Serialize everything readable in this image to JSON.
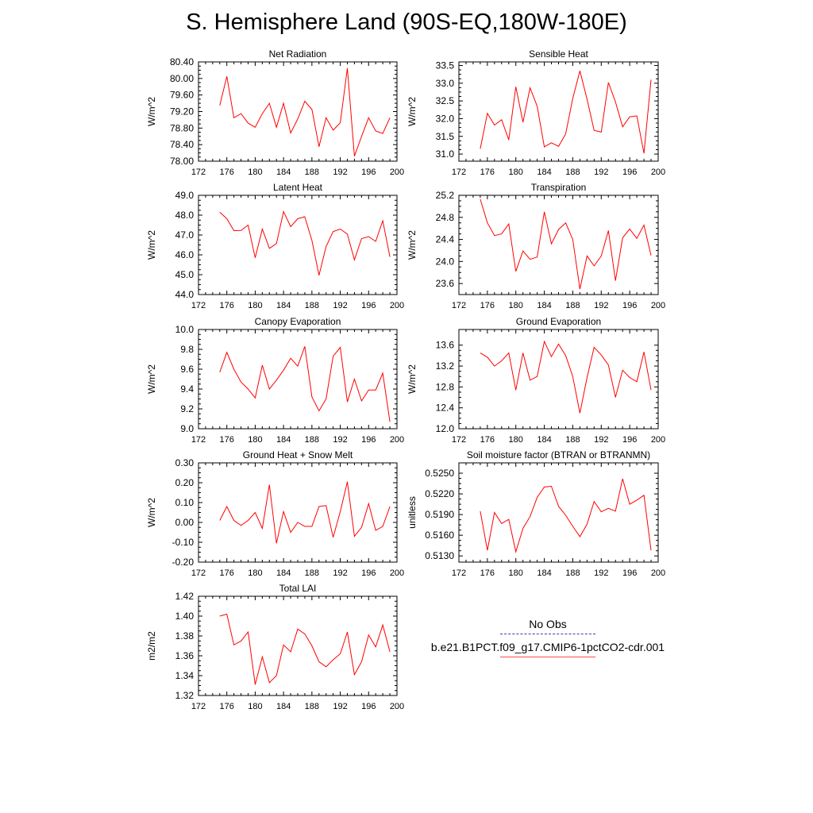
{
  "title": "S. Hemisphere Land (90S-EQ,180W-180E)",
  "legend": {
    "obs_label": "No Obs",
    "model_label": "b.e21.B1PCT.f09_g17.CMIP6-1pctCO2-cdr.001",
    "obs_color": "#3b3bbd",
    "model_color": "#ff0000"
  },
  "chart_data": [
    {
      "type": "line",
      "title": "Net Radiation",
      "ylabel": "W/m^2",
      "xlim": [
        172,
        200
      ],
      "xticks": [
        172,
        176,
        180,
        184,
        188,
        192,
        196,
        200
      ],
      "ylim": [
        78.0,
        80.4
      ],
      "yticks": [
        "78.00",
        "78.40",
        "78.80",
        "79.20",
        "79.60",
        "80.00",
        "80.40"
      ],
      "x": [
        175,
        176,
        177,
        178,
        179,
        180,
        181,
        182,
        183,
        184,
        185,
        186,
        187,
        188,
        189,
        190,
        191,
        192,
        193,
        194,
        195,
        196,
        197,
        198,
        199
      ],
      "series": [
        {
          "values": [
            79.35,
            80.05,
            79.05,
            79.15,
            78.92,
            78.82,
            79.15,
            79.4,
            78.82,
            79.4,
            78.68,
            79.02,
            79.45,
            79.25,
            78.35,
            79.05,
            78.75,
            78.93,
            80.25,
            78.12,
            78.6,
            79.05,
            78.73,
            78.67,
            79.05
          ]
        }
      ]
    },
    {
      "type": "line",
      "title": "Sensible Heat",
      "ylabel": "W/m^2",
      "xlim": [
        172,
        200
      ],
      "xticks": [
        172,
        176,
        180,
        184,
        188,
        192,
        196,
        200
      ],
      "ylim": [
        30.8,
        33.6
      ],
      "yticks": [
        "31.0",
        "31.5",
        "32.0",
        "32.5",
        "33.0",
        "33.5"
      ],
      "x": [
        175,
        176,
        177,
        178,
        179,
        180,
        181,
        182,
        183,
        184,
        185,
        186,
        187,
        188,
        189,
        190,
        191,
        192,
        193,
        194,
        195,
        196,
        197,
        198,
        199
      ],
      "series": [
        {
          "values": [
            31.15,
            32.15,
            31.82,
            31.97,
            31.4,
            32.9,
            31.9,
            32.87,
            32.35,
            31.2,
            31.32,
            31.22,
            31.57,
            32.57,
            33.35,
            32.55,
            31.67,
            31.62,
            33.02,
            32.47,
            31.77,
            32.05,
            32.08,
            31.02,
            33.1
          ]
        }
      ]
    },
    {
      "type": "line",
      "title": "Latent Heat",
      "ylabel": "W/m^2",
      "xlim": [
        172,
        200
      ],
      "xticks": [
        172,
        176,
        180,
        184,
        188,
        192,
        196,
        200
      ],
      "ylim": [
        44.0,
        49.0
      ],
      "yticks": [
        "44.0",
        "45.0",
        "46.0",
        "47.0",
        "48.0",
        "49.0"
      ],
      "x": [
        175,
        176,
        177,
        178,
        179,
        180,
        181,
        182,
        183,
        184,
        185,
        186,
        187,
        188,
        189,
        190,
        191,
        192,
        193,
        194,
        195,
        196,
        197,
        198,
        199
      ],
      "series": [
        {
          "values": [
            48.15,
            47.82,
            47.22,
            47.23,
            47.5,
            45.85,
            47.3,
            46.33,
            46.57,
            48.18,
            47.42,
            47.82,
            47.92,
            46.72,
            44.97,
            46.42,
            47.17,
            47.3,
            47.05,
            45.75,
            46.82,
            46.92,
            46.68,
            47.72,
            45.9
          ]
        }
      ]
    },
    {
      "type": "line",
      "title": "Transpiration",
      "ylabel": "W/m^2",
      "xlim": [
        172,
        200
      ],
      "xticks": [
        172,
        176,
        180,
        184,
        188,
        192,
        196,
        200
      ],
      "ylim": [
        23.4,
        25.2
      ],
      "yticks": [
        "23.6",
        "24.0",
        "24.4",
        "24.8",
        "25.2"
      ],
      "x": [
        175,
        176,
        177,
        178,
        179,
        180,
        181,
        182,
        183,
        184,
        185,
        186,
        187,
        188,
        189,
        190,
        191,
        192,
        193,
        194,
        195,
        196,
        197,
        198,
        199
      ],
      "series": [
        {
          "values": [
            25.13,
            24.7,
            24.47,
            24.5,
            24.68,
            23.82,
            24.19,
            24.04,
            24.08,
            24.9,
            24.32,
            24.58,
            24.7,
            24.4,
            23.5,
            24.1,
            23.92,
            24.1,
            24.56,
            23.65,
            24.43,
            24.59,
            24.42,
            24.66,
            24.11
          ]
        }
      ]
    },
    {
      "type": "line",
      "title": "Canopy Evaporation",
      "ylabel": "W/m^2",
      "xlim": [
        172,
        200
      ],
      "xticks": [
        172,
        176,
        180,
        184,
        188,
        192,
        196,
        200
      ],
      "ylim": [
        9.0,
        10.0
      ],
      "yticks": [
        "9.0",
        "9.2",
        "9.4",
        "9.6",
        "9.8",
        "10.0"
      ],
      "x": [
        175,
        176,
        177,
        178,
        179,
        180,
        181,
        182,
        183,
        184,
        185,
        186,
        187,
        188,
        189,
        190,
        191,
        192,
        193,
        194,
        195,
        196,
        197,
        198,
        199
      ],
      "series": [
        {
          "values": [
            9.57,
            9.77,
            9.6,
            9.47,
            9.4,
            9.31,
            9.64,
            9.4,
            9.49,
            9.59,
            9.71,
            9.63,
            9.83,
            9.32,
            9.18,
            9.3,
            9.73,
            9.82,
            9.27,
            9.5,
            9.28,
            9.39,
            9.39,
            9.56,
            9.07
          ]
        }
      ]
    },
    {
      "type": "line",
      "title": "Ground Evaporation",
      "ylabel": "W/m^2",
      "xlim": [
        172,
        200
      ],
      "xticks": [
        172,
        176,
        180,
        184,
        188,
        192,
        196,
        200
      ],
      "ylim": [
        12.0,
        13.9
      ],
      "yticks": [
        "12.0",
        "12.4",
        "12.8",
        "13.2",
        "13.6"
      ],
      "x": [
        175,
        176,
        177,
        178,
        179,
        180,
        181,
        182,
        183,
        184,
        185,
        186,
        187,
        188,
        189,
        190,
        191,
        192,
        193,
        194,
        195,
        196,
        197,
        198,
        199
      ],
      "series": [
        {
          "values": [
            13.45,
            13.37,
            13.2,
            13.3,
            13.45,
            12.74,
            13.45,
            12.93,
            13.0,
            13.67,
            13.38,
            13.62,
            13.4,
            13.0,
            12.3,
            12.98,
            13.56,
            13.41,
            13.22,
            12.6,
            13.12,
            12.98,
            12.9,
            13.47,
            12.74
          ]
        }
      ]
    },
    {
      "type": "line",
      "title": "Ground Heat + Snow Melt",
      "ylabel": "W/m^2",
      "xlim": [
        172,
        200
      ],
      "xticks": [
        172,
        176,
        180,
        184,
        188,
        192,
        196,
        200
      ],
      "ylim": [
        -0.2,
        0.3
      ],
      "yticks": [
        "-0.20",
        "-0.10",
        "0.00",
        "0.10",
        "0.20",
        "0.30"
      ],
      "x": [
        175,
        176,
        177,
        178,
        179,
        180,
        181,
        182,
        183,
        184,
        185,
        186,
        187,
        188,
        189,
        190,
        191,
        192,
        193,
        194,
        195,
        196,
        197,
        198,
        199
      ],
      "series": [
        {
          "values": [
            0.01,
            0.08,
            0.01,
            -0.015,
            0.01,
            0.05,
            -0.03,
            0.19,
            -0.105,
            0.055,
            -0.05,
            0.0,
            -0.02,
            -0.02,
            0.08,
            0.085,
            -0.075,
            0.055,
            0.205,
            -0.07,
            -0.025,
            0.095,
            -0.04,
            -0.02,
            0.08
          ]
        }
      ]
    },
    {
      "type": "line",
      "title": "Soil moisture factor (BTRAN or BTRANMN)",
      "ylabel": "unitless",
      "xlim": [
        172,
        200
      ],
      "xticks": [
        172,
        176,
        180,
        184,
        188,
        192,
        196,
        200
      ],
      "ylim": [
        0.5121,
        0.5265
      ],
      "yticks": [
        "0.5130",
        "0.5160",
        "0.5190",
        "0.5220",
        "0.5250"
      ],
      "x": [
        175,
        176,
        177,
        178,
        179,
        180,
        181,
        182,
        183,
        184,
        185,
        186,
        187,
        188,
        189,
        190,
        191,
        192,
        193,
        194,
        195,
        196,
        197,
        198,
        199
      ],
      "series": [
        {
          "values": [
            0.5195,
            0.5138,
            0.5193,
            0.5177,
            0.5183,
            0.5136,
            0.517,
            0.5187,
            0.5215,
            0.523,
            0.5231,
            0.5202,
            0.5189,
            0.5173,
            0.5158,
            0.5176,
            0.5209,
            0.5194,
            0.5199,
            0.5195,
            0.5242,
            0.5205,
            0.5211,
            0.5218,
            0.5138
          ]
        }
      ]
    },
    {
      "type": "line",
      "title": "Total LAI",
      "ylabel": "m2/m2",
      "xlim": [
        172,
        200
      ],
      "xticks": [
        172,
        176,
        180,
        184,
        188,
        192,
        196,
        200
      ],
      "ylim": [
        1.32,
        1.42
      ],
      "yticks": [
        "1.32",
        "1.34",
        "1.36",
        "1.38",
        "1.40",
        "1.42"
      ],
      "x": [
        175,
        176,
        177,
        178,
        179,
        180,
        181,
        182,
        183,
        184,
        185,
        186,
        187,
        188,
        189,
        190,
        191,
        192,
        193,
        194,
        195,
        196,
        197,
        198,
        199
      ],
      "series": [
        {
          "values": [
            1.4,
            1.402,
            1.371,
            1.375,
            1.384,
            1.331,
            1.359,
            1.333,
            1.34,
            1.371,
            1.364,
            1.387,
            1.382,
            1.37,
            1.354,
            1.349,
            1.356,
            1.362,
            1.384,
            1.341,
            1.354,
            1.381,
            1.369,
            1.391,
            1.364
          ]
        }
      ]
    }
  ]
}
